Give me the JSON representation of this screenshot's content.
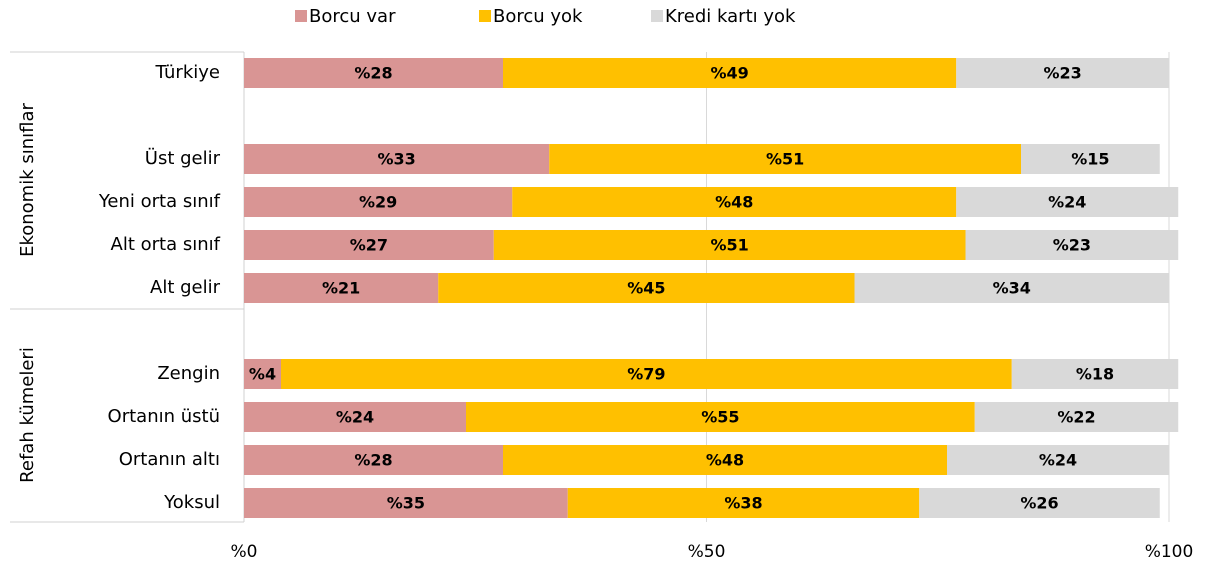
{
  "chart_data": {
    "type": "stacked-bar-horizontal",
    "categories": [
      "Türkiye",
      null,
      "Üst gelir",
      "Yeni orta sınıf",
      "Alt orta sınıf",
      "Alt gelir",
      null,
      "Zengin",
      "Ortanın üstü",
      "Ortanın altı",
      "Yoksul"
    ],
    "group_labels": [
      "Ekonomik sınıflar",
      "Refah kümeleri"
    ],
    "series": [
      {
        "name": "Borcu var",
        "color": "#d99594",
        "values": [
          28,
          null,
          33,
          29,
          27,
          21,
          null,
          4,
          24,
          28,
          35
        ],
        "value_labels": [
          "%28",
          null,
          "%33",
          "%29",
          "%27",
          "%21",
          null,
          "%4",
          "%24",
          "%28",
          "%35"
        ]
      },
      {
        "name": "Borcu yok",
        "color": "#ffc000",
        "values": [
          49,
          null,
          51,
          48,
          51,
          45,
          null,
          79,
          55,
          48,
          38
        ],
        "value_labels": [
          "%49",
          null,
          "%51",
          "%48",
          "%51",
          "%45",
          null,
          "%79",
          "%55",
          "%48",
          "%38"
        ]
      },
      {
        "name": "Kredi kartı yok",
        "color": "#d9d9d9",
        "values": [
          23,
          null,
          15,
          24,
          23,
          34,
          null,
          18,
          22,
          24,
          26
        ],
        "value_labels": [
          "%23",
          null,
          "%15",
          "%24",
          "%23",
          "%34",
          null,
          "%18",
          "%22",
          "%24",
          "%26"
        ]
      }
    ],
    "xlim": [
      0,
      100
    ],
    "xticks": [
      {
        "value": 0,
        "label": "%0"
      },
      {
        "value": 50,
        "label": "%50"
      },
      {
        "value": 100,
        "label": "%100"
      }
    ],
    "grid": true,
    "legend": "top"
  }
}
